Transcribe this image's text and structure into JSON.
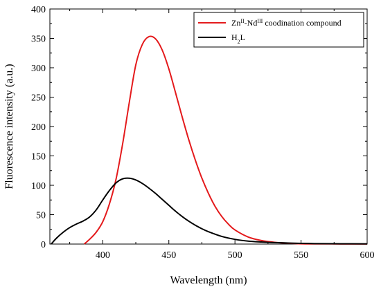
{
  "chart_data": {
    "type": "line",
    "xlabel": "Wavelength (nm)",
    "ylabel": "Fluorescence intensity (a.u.)",
    "xlim": [
      360,
      600
    ],
    "ylim": [
      0,
      400
    ],
    "xticks": [
      400,
      450,
      500,
      550,
      600
    ],
    "yticks": [
      0,
      50,
      100,
      150,
      200,
      250,
      300,
      350,
      400
    ],
    "grid": false,
    "legend_position": "top-right",
    "series": [
      {
        "name": "Zn(II)-Nd(III) coodination compound",
        "legend_parts": [
          {
            "text": "Zn",
            "sup": ""
          },
          {
            "text": "",
            "sup": "II"
          },
          {
            "text": "-Nd",
            "sup": ""
          },
          {
            "text": "",
            "sup": "III"
          },
          {
            "text": " coodination compound",
            "sup": ""
          }
        ],
        "color": "#e41a1c",
        "x": [
          386,
          390,
          395,
          400,
          405,
          410,
          415,
          420,
          425,
          430,
          435,
          440,
          445,
          450,
          455,
          460,
          465,
          470,
          475,
          480,
          485,
          490,
          495,
          500,
          510,
          520,
          530,
          540,
          550,
          560,
          580,
          600
        ],
        "y": [
          0,
          8,
          20,
          38,
          68,
          110,
          170,
          240,
          305,
          340,
          353,
          349,
          330,
          298,
          258,
          217,
          178,
          143,
          112,
          86,
          64,
          47,
          34,
          24,
          12,
          6,
          3,
          1.5,
          0.5,
          0.3,
          0.2,
          0.1
        ]
      },
      {
        "name": "H2L",
        "legend_parts": [
          {
            "text": "H",
            "sup": ""
          },
          {
            "text": "",
            "sub": "2"
          },
          {
            "text": "L",
            "sup": ""
          }
        ],
        "color": "#000000",
        "x": [
          361,
          365,
          370,
          375,
          380,
          385,
          390,
          395,
          400,
          405,
          410,
          415,
          420,
          425,
          430,
          435,
          440,
          445,
          450,
          455,
          460,
          465,
          470,
          475,
          480,
          490,
          500,
          510,
          520,
          530,
          540,
          550,
          560,
          580,
          600
        ],
        "y": [
          0,
          10,
          20,
          28,
          34,
          39,
          46,
          58,
          75,
          91,
          104,
          111,
          112,
          109,
          103,
          95,
          86,
          76,
          66,
          56,
          47,
          39,
          32,
          26,
          21,
          13,
          8,
          5,
          3.5,
          2.5,
          1.8,
          1.2,
          0.8,
          0.5,
          0.3
        ]
      }
    ]
  }
}
